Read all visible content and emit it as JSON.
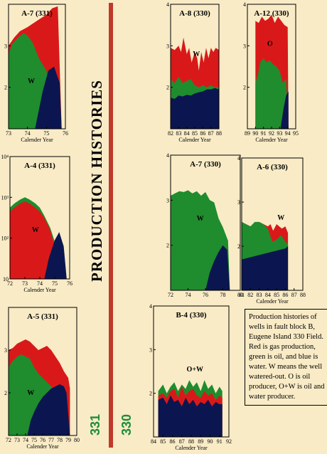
{
  "page": {
    "title": "PRODUCTION HISTORIES",
    "block_331": "331",
    "block_330": "330",
    "caption": "Production histories of wells in fault block B, Eugene Island 330 Field. Red is gas production, green is oil, and blue is water. W means the well watered-out.  O is oil producer, O+W is oil and water producer."
  },
  "colors": {
    "gas": "#d91919",
    "oil": "#1f8c2e",
    "water": "#0b1650",
    "background": "#f8ebc6",
    "divider": "#c0392b"
  },
  "chart_data": [
    {
      "type": "area",
      "title": "A-7 (331)",
      "xlabel": "Calender Year",
      "ylabel": "",
      "xlim": [
        73,
        76
      ],
      "x_ticks": [
        "73",
        "74",
        "75",
        "76"
      ],
      "ylim": [
        1,
        4
      ],
      "y_ticks": [
        {
          "v": 2,
          "t": "2"
        },
        {
          "v": 3,
          "t": "3"
        }
      ],
      "annotations": [
        {
          "text": "W",
          "x": 74.2,
          "y": 2.1
        }
      ],
      "series": [
        {
          "key": "gas",
          "x": [
            73,
            73.3,
            73.6,
            74,
            74.5,
            75,
            75.3,
            75.6,
            75.8
          ],
          "values": [
            3.0,
            3.2,
            3.35,
            3.45,
            3.6,
            3.75,
            3.9,
            3.95,
            1.0
          ]
        },
        {
          "key": "oil",
          "x": [
            73,
            73.2,
            73.5,
            73.8,
            74,
            74.3,
            74.6,
            75,
            75.5,
            75.7
          ],
          "values": [
            2.8,
            3.05,
            3.2,
            3.3,
            3.25,
            3.05,
            2.7,
            2.4,
            1.4,
            1.0
          ]
        },
        {
          "key": "water",
          "x": [
            74.4,
            74.8,
            75.1,
            75.4,
            75.7,
            75.8
          ],
          "values": [
            1.0,
            1.9,
            2.4,
            2.5,
            2.1,
            1.0
          ]
        }
      ]
    },
    {
      "type": "area",
      "title": "A-8 (330)",
      "xlabel": "Calender Year",
      "ylabel": "",
      "xlim": [
        82,
        88
      ],
      "x_ticks": [
        "82",
        "83",
        "84",
        "85",
        "86",
        "87",
        "88"
      ],
      "ylim": [
        1,
        4
      ],
      "y_ticks": [
        {
          "v": 2,
          "t": "2"
        },
        {
          "v": 3,
          "t": "3"
        },
        {
          "v": 4,
          "t": "4"
        }
      ],
      "annotations": [
        {
          "text": "W",
          "x": 85.2,
          "y": 2.75
        }
      ],
      "series": [
        {
          "key": "gas",
          "x": [
            82,
            82.5,
            83,
            83.3,
            83.6,
            84,
            84.3,
            84.6,
            85,
            85.3,
            85.5,
            85.8,
            86.1,
            86.4,
            86.7,
            87,
            87.3,
            87.6,
            88
          ],
          "values": [
            2.95,
            2.9,
            3.0,
            2.85,
            3.2,
            2.8,
            2.95,
            2.6,
            2.85,
            2.7,
            2.4,
            2.85,
            2.6,
            2.95,
            2.7,
            2.95,
            2.85,
            2.95,
            2.9
          ]
        },
        {
          "key": "oil",
          "x": [
            82,
            82.5,
            83,
            83.5,
            84,
            84.5,
            85,
            85.5,
            86,
            86.5,
            87,
            87.5,
            88
          ],
          "values": [
            2.2,
            2.1,
            2.25,
            2.1,
            2.15,
            2.2,
            2.05,
            2.0,
            2.05,
            2.0,
            2.05,
            2.0,
            2.0
          ]
        },
        {
          "key": "water",
          "x": [
            82,
            82.5,
            83,
            83.5,
            84,
            84.5,
            85,
            85.5,
            86,
            86.5,
            87,
            87.5,
            88
          ],
          "values": [
            1.75,
            1.72,
            1.8,
            1.78,
            1.82,
            1.8,
            1.85,
            1.88,
            1.9,
            1.95,
            1.95,
            1.98,
            1.95
          ]
        }
      ]
    },
    {
      "type": "area",
      "title": "A-12 (330)",
      "xlabel": "Calender Year",
      "ylabel": "",
      "xlim": [
        89,
        95
      ],
      "x_ticks": [
        "89",
        "90",
        "91",
        "92",
        "93",
        "94",
        "95"
      ],
      "ylim": [
        1,
        4
      ],
      "y_ticks": [
        {
          "v": 2,
          "t": "2"
        },
        {
          "v": 3,
          "t": "3"
        },
        {
          "v": 4,
          "t": "4"
        }
      ],
      "annotations": [
        {
          "text": "O",
          "x": 91.8,
          "y": 3.0
        }
      ],
      "series": [
        {
          "key": "gas",
          "x": [
            90,
            90.4,
            90.8,
            91.2,
            91.6,
            92,
            92.4,
            92.8,
            93.2,
            93.6,
            94,
            94.1
          ],
          "values": [
            3.6,
            3.55,
            3.7,
            3.6,
            3.65,
            3.75,
            3.55,
            3.7,
            3.6,
            3.5,
            3.45,
            1.0
          ]
        },
        {
          "key": "oil",
          "x": [
            90,
            90.3,
            90.6,
            91,
            91.4,
            91.8,
            92.2,
            92.6,
            93,
            93.4,
            93.8,
            94.1
          ],
          "values": [
            2.1,
            2.3,
            2.6,
            2.7,
            2.6,
            2.65,
            2.55,
            2.5,
            2.4,
            2.1,
            2.2,
            1.0
          ]
        },
        {
          "key": "water",
          "x": [
            93.1,
            93.5,
            93.8,
            94.1
          ],
          "values": [
            1.0,
            1.5,
            1.8,
            1.9
          ]
        }
      ]
    },
    {
      "type": "area",
      "title": "A-4 (331)",
      "xlabel": "Calender Year",
      "ylabel": "",
      "yscale": "log",
      "xlim": [
        72,
        76
      ],
      "x_ticks": [
        "72",
        "73",
        "74",
        "75",
        "76"
      ],
      "ylim": [
        1,
        4
      ],
      "y_ticks": [
        {
          "v": 1,
          "t": "10"
        },
        {
          "v": 2,
          "t": "10²"
        },
        {
          "v": 3,
          "t": "10³"
        },
        {
          "v": 4,
          "t": "10⁴"
        }
      ],
      "annotations": [
        {
          "text": "W",
          "x": 73.7,
          "y": 2.15
        }
      ],
      "series": [
        {
          "key": "oil",
          "x": [
            72,
            72.3,
            72.7,
            73,
            73.3,
            73.7,
            74,
            74.3,
            74.7,
            75.1,
            75.2
          ],
          "values": [
            2.75,
            2.85,
            2.95,
            3.0,
            2.95,
            2.85,
            2.75,
            2.55,
            2.25,
            1.8,
            1.0
          ]
        },
        {
          "key": "gas",
          "x": [
            72,
            72.3,
            72.7,
            73,
            73.3,
            73.7,
            74,
            74.3,
            74.7,
            75,
            75.2
          ],
          "values": [
            2.65,
            2.75,
            2.85,
            2.9,
            2.85,
            2.75,
            2.65,
            2.5,
            2.2,
            1.8,
            1.0
          ]
        },
        {
          "key": "water",
          "x": [
            74.3,
            74.6,
            75,
            75.3,
            75.6,
            75.8
          ],
          "values": [
            1.0,
            1.5,
            1.95,
            2.15,
            1.8,
            1.0
          ]
        }
      ]
    },
    {
      "type": "area",
      "title": "A-7 (330)",
      "xlabel": "",
      "ylabel": "",
      "xlim": [
        72,
        80
      ],
      "x_ticks": [
        "72",
        "74",
        "76",
        "78",
        "80"
      ],
      "ylim": [
        1,
        4
      ],
      "y_ticks": [
        {
          "v": 2,
          "t": "2"
        },
        {
          "v": 3,
          "t": "3"
        },
        {
          "v": 4,
          "t": "4"
        }
      ],
      "annotations": [
        {
          "text": "W",
          "x": 75.4,
          "y": 2.55
        }
      ],
      "series": [
        {
          "key": "oil",
          "x": [
            72,
            72.5,
            73,
            73.5,
            74,
            74.5,
            75,
            75.5,
            76,
            76.5,
            77,
            77.5,
            78,
            78.6,
            78.8
          ],
          "values": [
            3.1,
            3.15,
            3.2,
            3.18,
            3.22,
            3.15,
            3.2,
            3.1,
            3.18,
            3.0,
            2.95,
            2.6,
            2.4,
            2.1,
            1.0
          ]
        },
        {
          "key": "water",
          "x": [
            76,
            76.5,
            77,
            77.5,
            78,
            78.5,
            78.8
          ],
          "values": [
            1.0,
            1.4,
            1.65,
            1.85,
            2.0,
            1.9,
            1.0
          ]
        }
      ]
    },
    {
      "type": "area",
      "title": "A-6 (330)",
      "xlabel": "Calender Year",
      "ylabel": "",
      "xlim": [
        81,
        88
      ],
      "x_ticks": [
        "81",
        "82",
        "83",
        "84",
        "85",
        "86",
        "87",
        "88"
      ],
      "ylim": [
        1,
        4
      ],
      "y_ticks": [
        {
          "v": 2,
          "t": "2"
        },
        {
          "v": 3,
          "t": "3"
        },
        {
          "v": 4,
          "t": "4"
        }
      ],
      "annotations": [
        {
          "text": "W",
          "x": 85.5,
          "y": 2.6
        }
      ],
      "series": [
        {
          "key": "gas",
          "x": [
            81,
            81.5,
            82,
            82.5,
            83,
            83.5,
            84,
            84.3,
            84.6,
            85,
            85.3,
            85.6,
            86,
            86.3
          ],
          "values": [
            2.55,
            2.5,
            2.45,
            2.5,
            2.55,
            2.5,
            2.45,
            2.5,
            2.35,
            2.5,
            2.45,
            2.4,
            2.45,
            2.3
          ]
        },
        {
          "key": "oil",
          "x": [
            81,
            81.5,
            82,
            82.5,
            83,
            83.5,
            84,
            84.5,
            85,
            85.5,
            86,
            86.3
          ],
          "values": [
            2.55,
            2.5,
            2.45,
            2.55,
            2.55,
            2.5,
            2.4,
            2.1,
            2.15,
            2.25,
            2.1,
            2.05
          ]
        },
        {
          "key": "water",
          "x": [
            81,
            82,
            83,
            84,
            85,
            86,
            86.3
          ],
          "values": [
            1.7,
            1.75,
            1.8,
            1.85,
            1.9,
            1.95,
            2.0
          ]
        }
      ]
    },
    {
      "type": "area",
      "title": "A-5 (331)",
      "xlabel": "Calender Year",
      "ylabel": "",
      "xlim": [
        72,
        80
      ],
      "x_ticks": [
        "72",
        "73",
        "74",
        "75",
        "76",
        "77",
        "78",
        "79",
        "80"
      ],
      "ylim": [
        1,
        4
      ],
      "y_ticks": [
        {
          "v": 2,
          "t": "2"
        },
        {
          "v": 3,
          "t": "3"
        }
      ],
      "annotations": [
        {
          "text": "W",
          "x": 74.6,
          "y": 1.95
        }
      ],
      "series": [
        {
          "key": "gas",
          "x": [
            72,
            72.5,
            73,
            73.5,
            74,
            74.5,
            75,
            75.5,
            76,
            76.5,
            77,
            77.5,
            78,
            78.5,
            79,
            79.2
          ],
          "values": [
            3.0,
            3.05,
            3.15,
            3.2,
            3.25,
            3.2,
            3.1,
            3.0,
            3.05,
            3.1,
            3.0,
            2.85,
            2.7,
            2.5,
            2.35,
            2.1
          ]
        },
        {
          "key": "oil",
          "x": [
            72,
            72.5,
            73,
            73.5,
            74,
            74.5,
            75,
            75.5,
            76,
            76.5,
            77,
            77.5,
            78,
            78.6
          ],
          "values": [
            2.6,
            2.75,
            2.85,
            2.9,
            2.85,
            2.8,
            2.6,
            2.45,
            2.35,
            2.25,
            2.15,
            2.05,
            2.0,
            1.0
          ]
        },
        {
          "key": "water",
          "x": [
            74.2,
            74.6,
            75,
            75.5,
            76,
            76.5,
            77,
            77.5,
            78,
            78.5,
            78.8,
            79.2
          ],
          "values": [
            1.0,
            1.35,
            1.55,
            1.75,
            1.9,
            2.0,
            2.1,
            2.15,
            2.2,
            2.15,
            2.0,
            1.0
          ]
        }
      ]
    },
    {
      "type": "area",
      "title": "B-4 (330)",
      "xlabel": "Calender Year",
      "ylabel": "",
      "xlim": [
        84,
        92
      ],
      "x_ticks": [
        "84",
        "85",
        "86",
        "87",
        "88",
        "89",
        "90",
        "91",
        "92"
      ],
      "ylim": [
        1,
        4
      ],
      "y_ticks": [
        {
          "v": 2,
          "t": "2"
        },
        {
          "v": 3,
          "t": "3"
        },
        {
          "v": 4,
          "t": "4"
        }
      ],
      "annotations": [
        {
          "text": "O+W",
          "x": 88.4,
          "y": 2.5
        }
      ],
      "series": [
        {
          "key": "oil",
          "x": [
            84.5,
            85,
            85.4,
            85.8,
            86.2,
            86.6,
            87,
            87.4,
            87.8,
            88.2,
            88.6,
            89,
            89.4,
            89.8,
            90.2,
            90.6,
            91,
            91.3
          ],
          "values": [
            2.05,
            2.2,
            2.0,
            2.15,
            2.25,
            2.05,
            2.2,
            2.1,
            2.3,
            2.15,
            2.25,
            2.05,
            2.3,
            2.1,
            2.2,
            2.0,
            2.15,
            2.05
          ]
        },
        {
          "key": "gas",
          "x": [
            84.5,
            85,
            85.4,
            85.8,
            86.2,
            86.6,
            87,
            87.4,
            87.8,
            88.2,
            88.6,
            89,
            89.4,
            89.8,
            90.2,
            90.6,
            91,
            91.3
          ],
          "values": [
            1.95,
            2.0,
            1.9,
            2.05,
            2.1,
            1.9,
            2.15,
            1.95,
            2.05,
            2.1,
            1.95,
            1.9,
            2.05,
            1.95,
            2.0,
            1.85,
            1.95,
            1.9
          ]
        },
        {
          "key": "water",
          "x": [
            84.5,
            85,
            85.4,
            85.8,
            86.2,
            86.6,
            87,
            87.4,
            87.8,
            88.2,
            88.6,
            89,
            89.4,
            89.8,
            90.2,
            90.6,
            91,
            91.3
          ],
          "values": [
            1.85,
            1.9,
            1.75,
            1.95,
            1.8,
            1.85,
            1.7,
            1.9,
            1.75,
            1.85,
            1.7,
            1.8,
            1.75,
            1.85,
            1.7,
            1.8,
            1.75,
            1.75
          ]
        }
      ]
    }
  ]
}
